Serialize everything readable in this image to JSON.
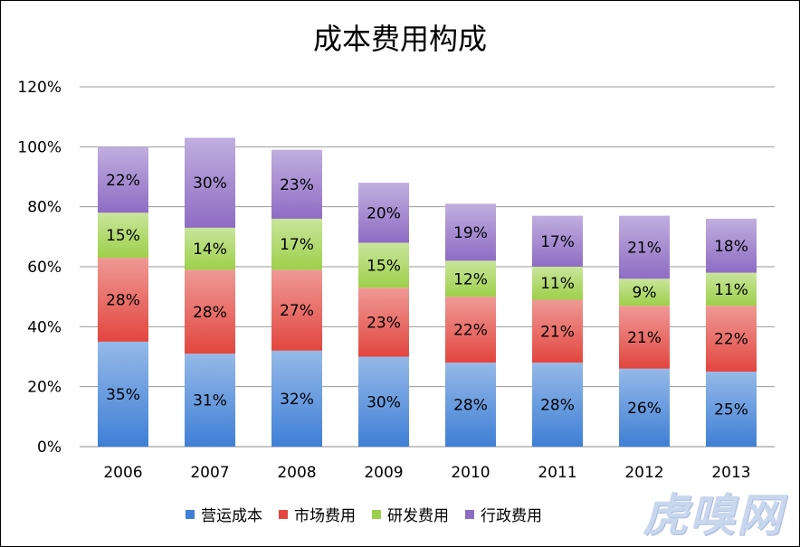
{
  "chart_data": {
    "type": "bar",
    "stacked": true,
    "title": "成本费用构成",
    "categories": [
      "2006",
      "2007",
      "2008",
      "2009",
      "2010",
      "2011",
      "2012",
      "2013"
    ],
    "series": [
      {
        "name": "营运成本",
        "values": [
          35,
          31,
          32,
          30,
          28,
          28,
          26,
          25
        ],
        "color": "#3f7fd6"
      },
      {
        "name": "市场费用",
        "values": [
          28,
          28,
          27,
          23,
          22,
          21,
          21,
          22
        ],
        "color": "#e2463f"
      },
      {
        "name": "研发费用",
        "values": [
          15,
          14,
          17,
          15,
          12,
          11,
          9,
          11
        ],
        "color": "#9dd04a"
      },
      {
        "name": "行政费用",
        "values": [
          22,
          30,
          23,
          20,
          19,
          17,
          21,
          18
        ],
        "color": "#8e6cc4"
      }
    ],
    "value_labels": [
      [
        "35%",
        "31%",
        "32%",
        "30%",
        "28%",
        "28%",
        "26%",
        "25%"
      ],
      [
        "28%",
        "28%",
        "27%",
        "23%",
        "22%",
        "21%",
        "21%",
        "22%"
      ],
      [
        "15%",
        "14%",
        "17%",
        "15%",
        "12%",
        "11%",
        "9%",
        "11%"
      ],
      [
        "22%",
        "30%",
        "23%",
        "20%",
        "19%",
        "17%",
        "21%",
        "18%"
      ]
    ],
    "y_ticks": [
      "0%",
      "20%",
      "40%",
      "60%",
      "80%",
      "100%",
      "120%"
    ],
    "ylim": [
      0,
      120
    ],
    "grid": true,
    "legend_position": "bottom"
  },
  "watermark": "虎嗅网"
}
